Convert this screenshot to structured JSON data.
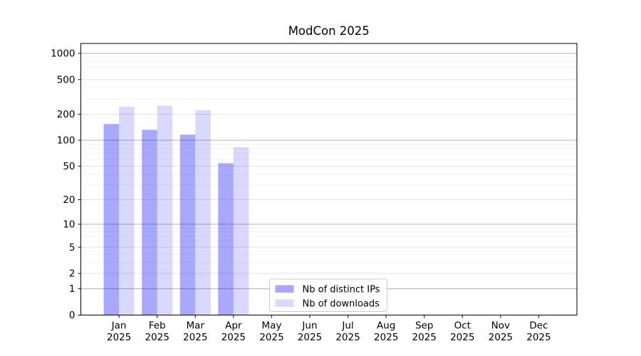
{
  "chart_data": {
    "type": "bar",
    "title": "ModCon 2025",
    "categories": [
      "Jan 2025",
      "Feb 2025",
      "Mar 2025",
      "Apr 2025",
      "May 2025",
      "Jun 2025",
      "Jul 2025",
      "Aug 2025",
      "Sep 2025",
      "Oct 2025",
      "Nov 2025",
      "Dec 2025"
    ],
    "series": [
      {
        "name": "Nb of distinct IPs",
        "color": "rgba(0,0,255,0.34)",
        "values": [
          154,
          132,
          116,
          54,
          0,
          0,
          0,
          0,
          0,
          0,
          0,
          0
        ]
      },
      {
        "name": "Nb of downloads",
        "color": "rgba(0,0,255,0.15)",
        "values": [
          244,
          251,
          222,
          83,
          0,
          0,
          0,
          0,
          0,
          0,
          0,
          0
        ]
      }
    ],
    "xlabel": "",
    "ylabel": "",
    "scale": "log1p",
    "ylim": [
      0,
      1300
    ],
    "yticks": [
      0,
      1,
      2,
      5,
      10,
      20,
      50,
      100,
      200,
      500,
      1000
    ],
    "yticks_emphasis": [
      1,
      10,
      100,
      1000
    ],
    "minor_ticks": [
      3,
      4,
      6,
      7,
      8,
      9,
      30,
      40,
      60,
      70,
      80,
      90,
      300,
      400,
      600,
      700,
      800,
      900
    ],
    "grid": "on",
    "legend_position": "lower center",
    "colors": {
      "grid_major": "#b0b0b0",
      "grid_mid": "#e2e2e2",
      "grid_minor": "#f2f2f2",
      "spine": "#000000",
      "legend_border": "#cccccc",
      "legend_bg": "#ffffff"
    }
  }
}
